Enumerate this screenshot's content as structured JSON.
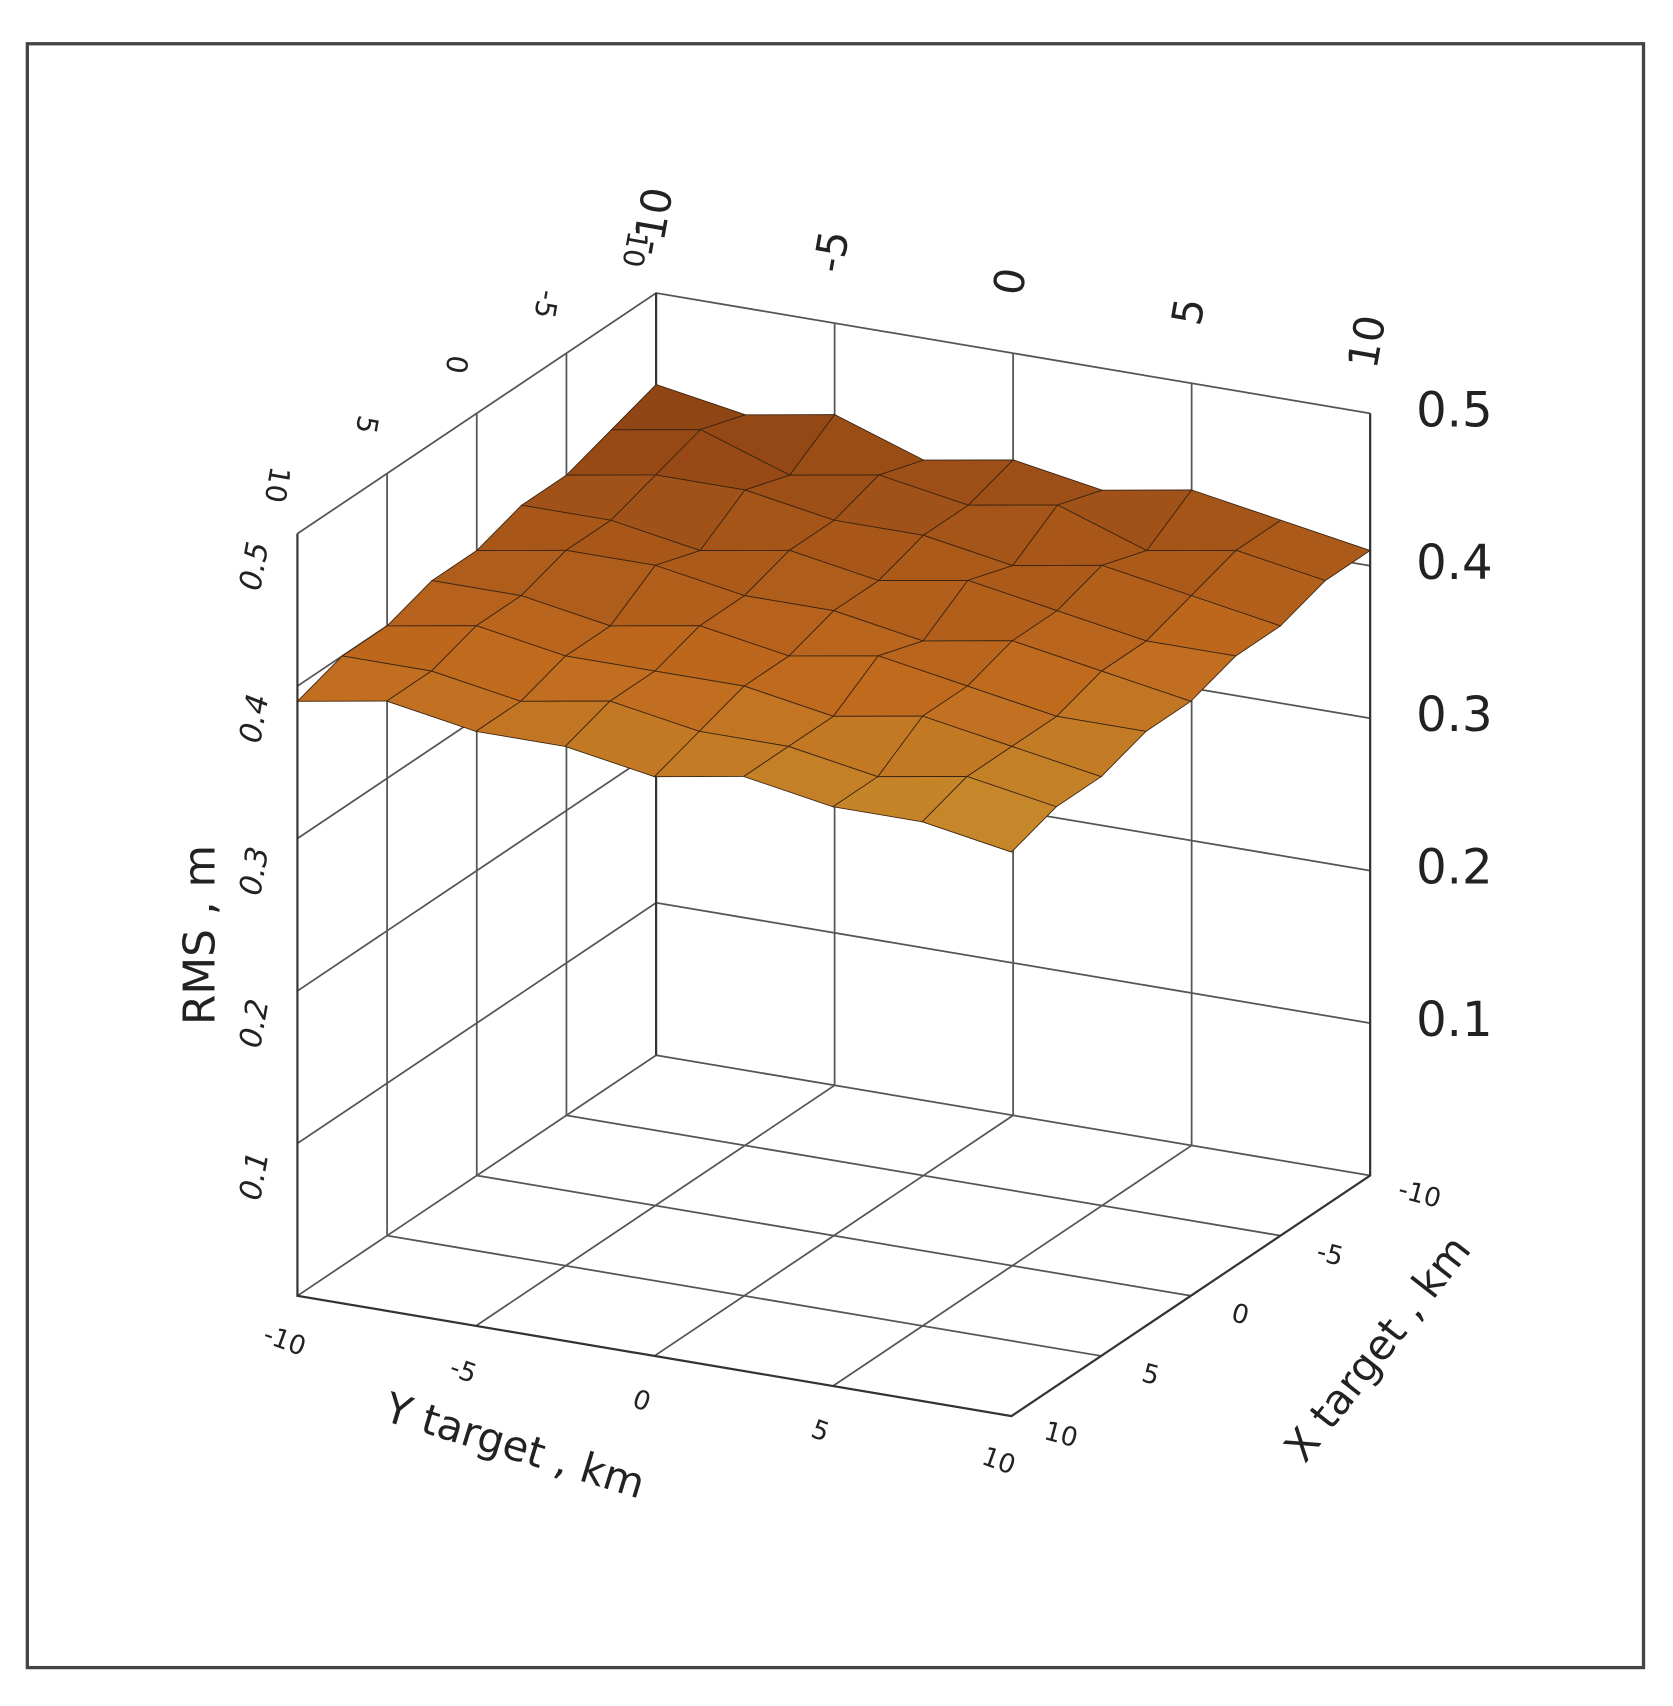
{
  "chart_data": {
    "type": "surface3d",
    "xlabel": "X target , km",
    "ylabel": "Y target , km",
    "zlabel": "RMS , m",
    "xlim": [
      -10,
      10
    ],
    "ylim": [
      -10,
      10
    ],
    "zlim": [
      0,
      0.5
    ],
    "xticks": [
      -10,
      -5,
      0,
      5,
      10
    ],
    "yticks": [
      -10,
      -5,
      0,
      5,
      10
    ],
    "zticks": [
      0.1,
      0.2,
      0.3,
      0.4,
      0.5
    ],
    "x": [
      -10,
      -7.5,
      -5,
      -2.5,
      0,
      2.5,
      5,
      7.5,
      10
    ],
    "y": [
      -10,
      -7.5,
      -5,
      -2.5,
      0,
      2.5,
      5,
      7.5,
      10
    ],
    "z": [
      [
        0.44,
        0.43,
        0.44,
        0.42,
        0.43,
        0.42,
        0.43,
        0.42,
        0.41
      ],
      [
        0.43,
        0.44,
        0.42,
        0.43,
        0.42,
        0.43,
        0.41,
        0.42,
        0.41
      ],
      [
        0.42,
        0.43,
        0.43,
        0.42,
        0.42,
        0.41,
        0.42,
        0.41,
        0.4
      ],
      [
        0.42,
        0.42,
        0.41,
        0.42,
        0.41,
        0.42,
        0.41,
        0.4,
        0.4
      ],
      [
        0.41,
        0.42,
        0.42,
        0.41,
        0.41,
        0.4,
        0.41,
        0.4,
        0.39
      ],
      [
        0.41,
        0.41,
        0.4,
        0.41,
        0.4,
        0.41,
        0.4,
        0.39,
        0.39
      ],
      [
        0.4,
        0.41,
        0.4,
        0.4,
        0.4,
        0.39,
        0.4,
        0.39,
        0.38
      ],
      [
        0.4,
        0.4,
        0.39,
        0.4,
        0.39,
        0.39,
        0.38,
        0.39,
        0.38
      ],
      [
        0.39,
        0.4,
        0.39,
        0.39,
        0.38,
        0.39,
        0.38,
        0.38,
        0.37
      ]
    ],
    "colormap": [
      "#cdb33c",
      "#c06a1e",
      "#7c3510"
    ],
    "grid": true
  }
}
